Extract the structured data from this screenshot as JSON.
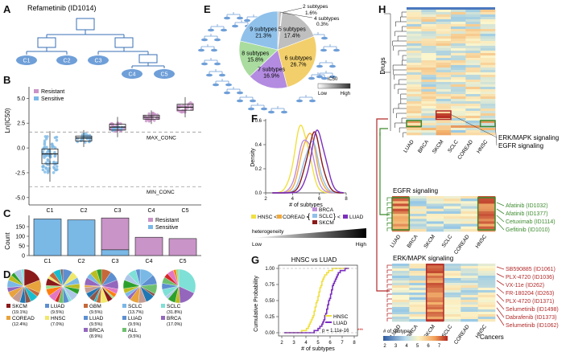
{
  "panel_labels": {
    "A": "A",
    "B": "B",
    "C": "C",
    "D": "D",
    "E": "E",
    "F": "F",
    "G": "G",
    "H": "H"
  },
  "colors": {
    "resistant": "#c994c7",
    "sensitive": "#7ab8e6",
    "node": "#6f9fd8",
    "green": "#3d8b2f",
    "red": "#b22a2a"
  },
  "panel_a": {
    "title": "Refametinib (ID1014)",
    "leaves": [
      "C1",
      "C2",
      "C3",
      "C4",
      "C5"
    ]
  },
  "panel_b": {
    "ylabel": "Ln(IC50)",
    "legend": [
      "Resistant",
      "Sensitive"
    ],
    "max_label": "MAX_CONC",
    "min_label": "MIN_CONC",
    "chart_data": {
      "type": "box",
      "categories": [
        "C1",
        "C2",
        "C3",
        "C4",
        "C5"
      ],
      "yticks": [
        "5.0",
        "2.5",
        "0.0",
        "-2.5",
        "-5.0"
      ],
      "ylim": [
        -5.5,
        6
      ],
      "max_conc": 1.6,
      "min_conc": -3.9,
      "boxes": [
        {
          "q1": -1.6,
          "med": -0.6,
          "q3": -0.1
        },
        {
          "q1": 0.7,
          "med": 1.0,
          "q3": 1.2
        },
        {
          "q1": 1.8,
          "med": 2.1,
          "q3": 2.4
        },
        {
          "q1": 2.9,
          "med": 3.1,
          "q3": 3.3
        },
        {
          "q1": 3.8,
          "med": 4.1,
          "q3": 4.4
        }
      ]
    }
  },
  "panel_c": {
    "ylabel": "Count",
    "legend": [
      "Resistant",
      "Sensitive"
    ],
    "chart_data": {
      "type": "bar",
      "categories": [
        "C1",
        "C2",
        "C3",
        "C4",
        "C5"
      ],
      "yticks": [
        "150",
        "100",
        "50",
        "0"
      ],
      "ylim": [
        0,
        200
      ],
      "series": [
        {
          "name": "Sensitive",
          "values": [
            190,
            185,
            30,
            0,
            0
          ]
        },
        {
          "name": "Resistant",
          "values": [
            0,
            0,
            165,
            95,
            88
          ]
        }
      ]
    }
  },
  "panel_d": {
    "pies": [
      {
        "legend": [
          {
            "name": "SKCM",
            "pct": "(19.1%)",
            "color": "#8b1a1a"
          },
          {
            "name": "COREAD",
            "pct": "(12.4%)",
            "color": "#e8a33d"
          }
        ]
      },
      {
        "legend": [
          {
            "name": "LUAD",
            "pct": "(9.5%)",
            "color": "#5d8fd0"
          },
          {
            "name": "HNSC",
            "pct": "(7.0%)",
            "color": "#f0e86a"
          }
        ]
      },
      {
        "legend": [
          {
            "name": "GBM",
            "pct": "(9.5%)",
            "color": "#c5683a"
          },
          {
            "name": "LUAD",
            "pct": "(9.5%)",
            "color": "#5d8fd0"
          },
          {
            "name": "BRCA",
            "pct": "(8.9%)",
            "color": "#9467bd"
          }
        ]
      },
      {
        "legend": [
          {
            "name": "SCLC",
            "pct": "(13.7%)",
            "color": "#7ab8e6"
          },
          {
            "name": "LUAD",
            "pct": "(9.5%)",
            "color": "#5d8fd0"
          },
          {
            "name": "ALL",
            "pct": "(9.5%)",
            "color": "#6ec06e"
          }
        ]
      },
      {
        "legend": [
          {
            "name": "SCLC",
            "pct": "(31.8%)",
            "color": "#7ee0d6"
          },
          {
            "name": "BRCA",
            "pct": "(17.0%)",
            "color": "#9467bd"
          }
        ]
      }
    ]
  },
  "panel_e": {
    "chart_data": {
      "type": "pie",
      "slices": [
        {
          "label": "2 subtypes",
          "pct": "1.6%",
          "value": 1.6,
          "color": "#c7c7c7"
        },
        {
          "label": "4 subtypes",
          "pct": "0.3%",
          "value": 0.3,
          "color": "#d9d9d9"
        },
        {
          "label": "5 subtypes",
          "pct": "17.4%",
          "value": 17.4,
          "color": "#bfbfbf"
        },
        {
          "label": "6 subtypes",
          "pct": "26.7%",
          "value": 26.7,
          "color": "#f2cf6b"
        },
        {
          "label": "7 subtypes",
          "pct": "16.9%",
          "value": 16.9,
          "color": "#b38be0"
        },
        {
          "label": "8 subtypes",
          "pct": "15.8%",
          "value": 15.8,
          "color": "#a9dc9e"
        },
        {
          "label": "9 subtypes",
          "pct": "21.3%",
          "value": 21.3,
          "color": "#8fc1ea"
        }
      ]
    },
    "ic50_label": "IC50",
    "low": "Low",
    "high": "High"
  },
  "panel_f": {
    "ylabel": "Density",
    "xlabel": "# of subtypes",
    "xticks": [
      "2",
      "4",
      "6",
      "8"
    ],
    "yticks": [
      "0.6",
      "0.4",
      "0.2",
      "0.0"
    ],
    "legend": [
      "BRCA",
      "SCLC",
      "SKCM"
    ],
    "order": [
      "HNSC <",
      "COREAD <",
      "<",
      "LUAD"
    ],
    "bar_label": "heterogeneity",
    "low": "Low",
    "high": "High",
    "chart_data": {
      "type": "line",
      "x_range": [
        2,
        8
      ],
      "ylim": [
        0,
        0.6
      ],
      "series": [
        {
          "name": "HNSC",
          "color": "#f0e040",
          "peak": 4.7,
          "height": 0.55
        },
        {
          "name": "COREAD",
          "color": "#f2a93b",
          "peak": 5.2,
          "height": 0.5
        },
        {
          "name": "BRCA",
          "color": "#c08cd8",
          "peak": 5.0,
          "height": 0.46
        },
        {
          "name": "SCLC",
          "color": "#8fc1ea",
          "peak": 5.4,
          "height": 0.42
        },
        {
          "name": "SKCM",
          "color": "#8b1a1a",
          "peak": 5.6,
          "height": 0.48
        },
        {
          "name": "LUAD",
          "color": "#7b2fbe",
          "peak": 5.9,
          "height": 0.5
        }
      ]
    }
  },
  "panel_g": {
    "title": "HNSC vs LUAD",
    "ylabel": "Cumulative Probability",
    "xlabel": "# of subtypes",
    "xticks": [
      "2",
      "3",
      "4",
      "5",
      "6",
      "7",
      "8"
    ],
    "yticks": [
      "1.00",
      "0.75",
      "0.50",
      "0.25",
      "0.00"
    ],
    "legend": [
      "HNSC",
      "LUAD"
    ],
    "pval": "p = 1.11e-16",
    "chart_data": {
      "type": "line",
      "series": [
        {
          "name": "HNSC",
          "color": "#f0e040",
          "median": 4.9
        },
        {
          "name": "LUAD",
          "color": "#7b2fbe",
          "median": 5.9
        }
      ]
    }
  },
  "panel_h": {
    "drugs_label": "Drugs",
    "cancers": [
      "LUAD",
      "BRCA",
      "SKCM",
      "SCLC",
      "COREAD",
      "HNSC"
    ],
    "erk_label": "ERK/MAPK signaling",
    "egfr_label": "EGFR signaling",
    "egfr_title": "EGFR signaling",
    "erk_title": "ERK/MAPK signaling",
    "egfr_drugs": [
      "Afatinib (ID1032)",
      "Afatinib (ID1377)",
      "Cetuximab (ID1114)",
      "Gefitinib (ID1010)"
    ],
    "erk_drugs": [
      "SB590885 (ID1061)",
      "PLX-4720 (ID1036)",
      "VX-11e (ID262)",
      "FR-180204 (ID263)",
      "PLX-4720 (ID1371)",
      "Selumetinib (ID1498)",
      "Dabrafenib (ID1373)",
      "Selumetinib (ID1062)"
    ],
    "scale_title": "# of subtypes",
    "scale_ticks": [
      "2",
      "3",
      "4",
      "5",
      "6",
      "7"
    ],
    "cancers_label": "Cancers"
  }
}
